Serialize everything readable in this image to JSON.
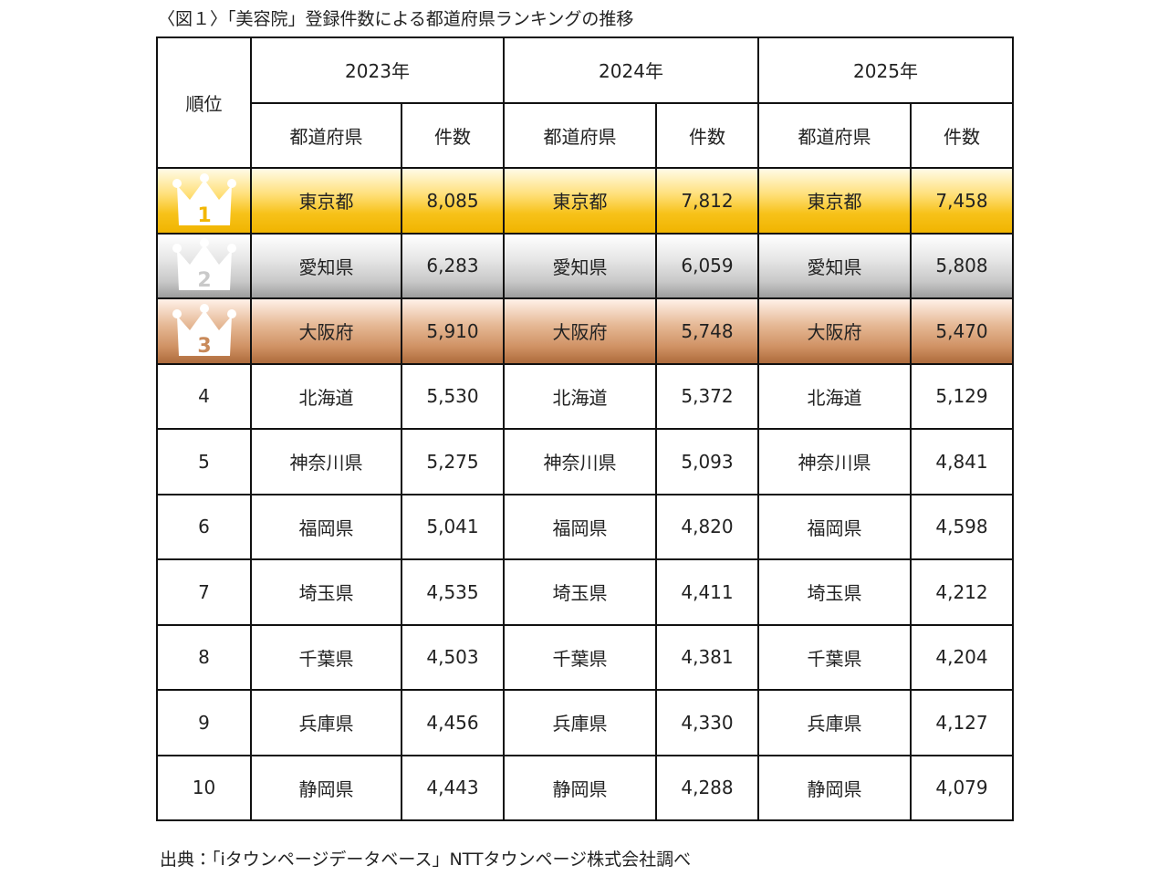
{
  "title": "〈図１〉「美容院」登録件数による都道府県ランキングの推移",
  "table": {
    "rank_header": "順位",
    "years": [
      "2023年",
      "2024年",
      "2025年"
    ],
    "sub_headers": [
      "都道府県",
      "件数",
      "都道府県",
      "件数",
      "都道府県",
      "件数"
    ],
    "rows": [
      {
        "rank": "1",
        "cells": [
          "東京都",
          "8,085",
          "東京都",
          "7,812",
          "東京都",
          "7,458"
        ]
      },
      {
        "rank": "2",
        "cells": [
          "愛知県",
          "6,283",
          "愛知県",
          "6,059",
          "愛知県",
          "5,808"
        ]
      },
      {
        "rank": "3",
        "cells": [
          "大阪府",
          "5,910",
          "大阪府",
          "5,748",
          "大阪府",
          "5,470"
        ]
      },
      {
        "rank": "4",
        "cells": [
          "北海道",
          "5,530",
          "北海道",
          "5,372",
          "北海道",
          "5,129"
        ]
      },
      {
        "rank": "5",
        "cells": [
          "神奈川県",
          "5,275",
          "神奈川県",
          "5,093",
          "神奈川県",
          "4,841"
        ]
      },
      {
        "rank": "6",
        "cells": [
          "福岡県",
          "5,041",
          "福岡県",
          "4,820",
          "福岡県",
          "4,598"
        ]
      },
      {
        "rank": "7",
        "cells": [
          "埼玉県",
          "4,535",
          "埼玉県",
          "4,411",
          "埼玉県",
          "4,212"
        ]
      },
      {
        "rank": "8",
        "cells": [
          "千葉県",
          "4,503",
          "千葉県",
          "4,381",
          "千葉県",
          "4,204"
        ]
      },
      {
        "rank": "9",
        "cells": [
          "兵庫県",
          "4,456",
          "兵庫県",
          "4,330",
          "兵庫県",
          "4,127"
        ]
      },
      {
        "rank": "10",
        "cells": [
          "静岡県",
          "4,443",
          "静岡県",
          "4,288",
          "静岡県",
          "4,079"
        ]
      }
    ]
  },
  "source": "出典：「iタウンページデータベース」NTTタウンページ株式会社調べ"
}
